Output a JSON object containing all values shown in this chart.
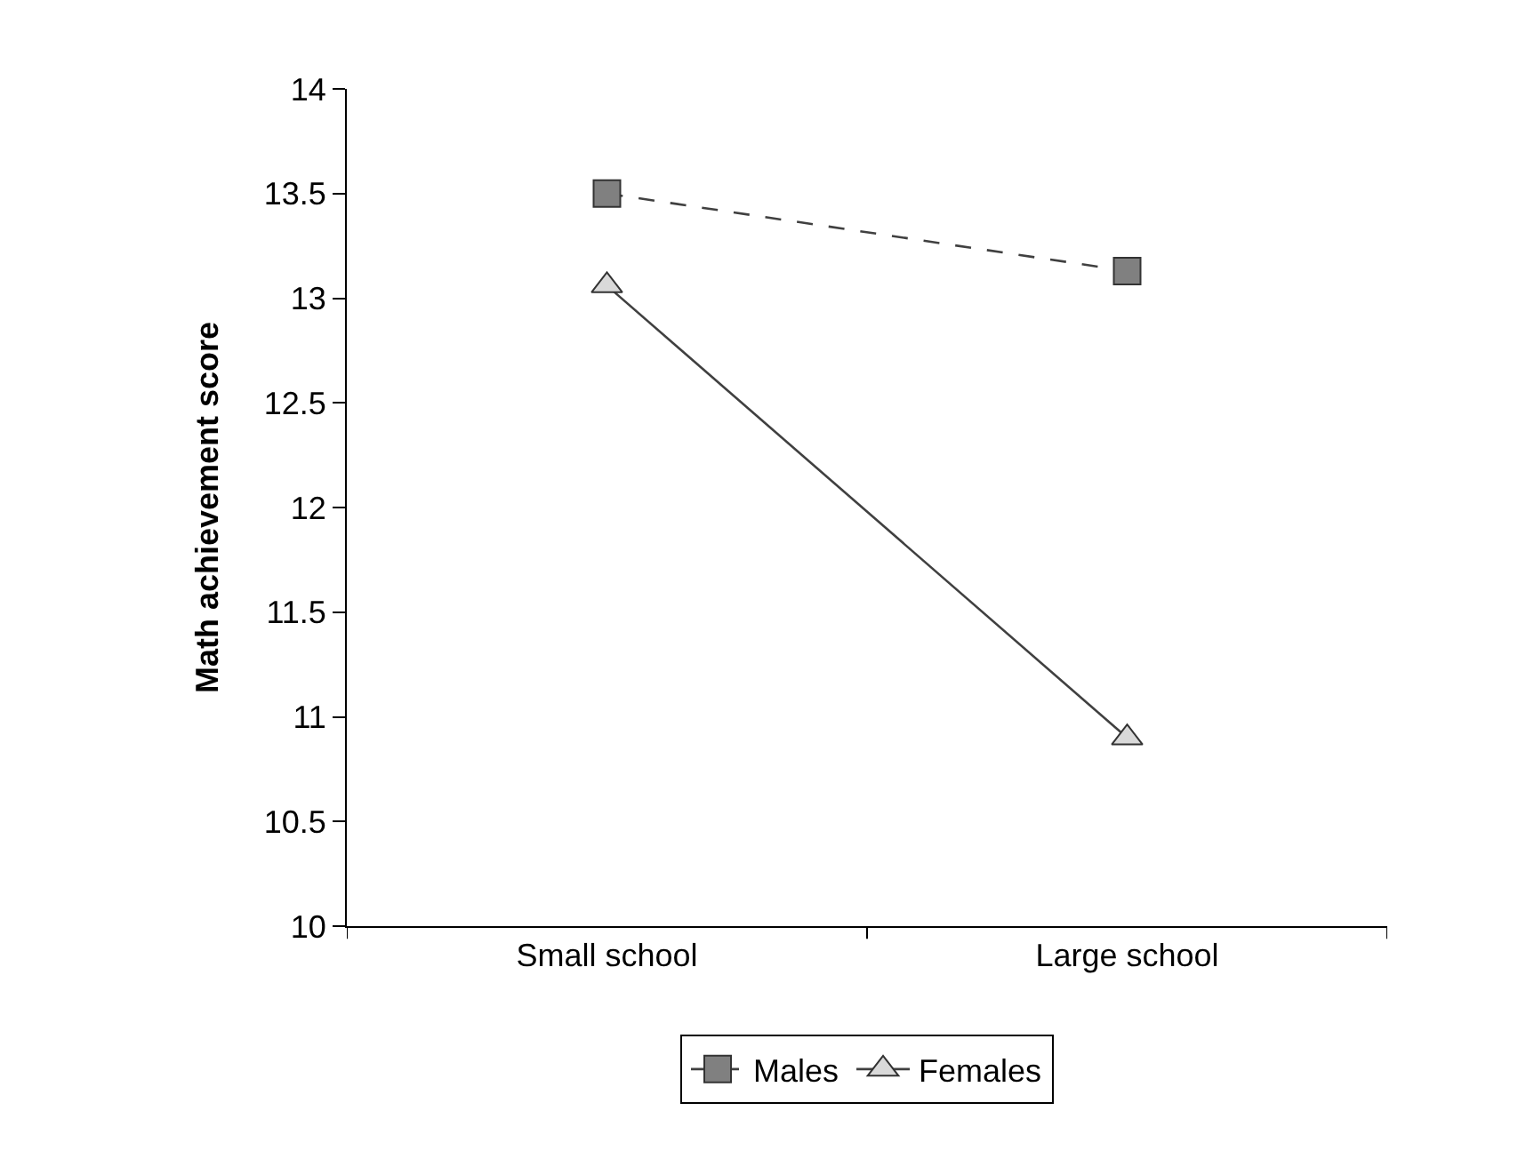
{
  "chart_data": {
    "type": "line",
    "ylabel": "Math achievement score",
    "categories": [
      "Small school",
      "Large school"
    ],
    "series": [
      {
        "name": "Males",
        "color": "#808080",
        "values": [
          13.5,
          13.13
        ],
        "marker": "square",
        "line_style": "dashed"
      },
      {
        "name": "Females",
        "color": "#d9d9d9",
        "values": [
          13.06,
          10.9
        ],
        "marker": "triangle",
        "line_style": "solid"
      }
    ],
    "ylim": [
      10,
      14
    ],
    "yticks": [
      10,
      10.5,
      11,
      11.5,
      12,
      12.5,
      13,
      13.5,
      14
    ],
    "legend": "bottom"
  }
}
